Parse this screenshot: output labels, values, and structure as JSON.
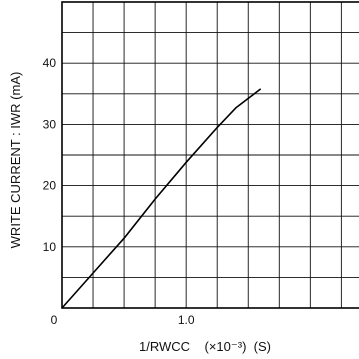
{
  "chart_data": {
    "type": "line",
    "title": "",
    "xlabel": "1/RWCC    (×10⁻³)  (S)",
    "ylabel": "WRITE  CURRENT : IWR  (mA)",
    "xlim": [
      0,
      2.4
    ],
    "ylim": [
      0,
      50
    ],
    "grid": true,
    "x_ticks": [
      {
        "value": 0,
        "label": "0"
      },
      {
        "value": 1.0,
        "label": "1.0"
      }
    ],
    "y_ticks": [
      {
        "value": 10,
        "label": "10"
      },
      {
        "value": 20,
        "label": "20"
      },
      {
        "value": 30,
        "label": "30"
      },
      {
        "value": 40,
        "label": "40"
      }
    ],
    "series": [
      {
        "x": [
          0,
          0.25,
          0.5,
          0.75,
          1.0,
          1.25,
          1.4,
          1.6
        ],
        "y": [
          0,
          5.7,
          11.4,
          17.8,
          23.8,
          29.5,
          32.7,
          35.8
        ]
      }
    ]
  }
}
